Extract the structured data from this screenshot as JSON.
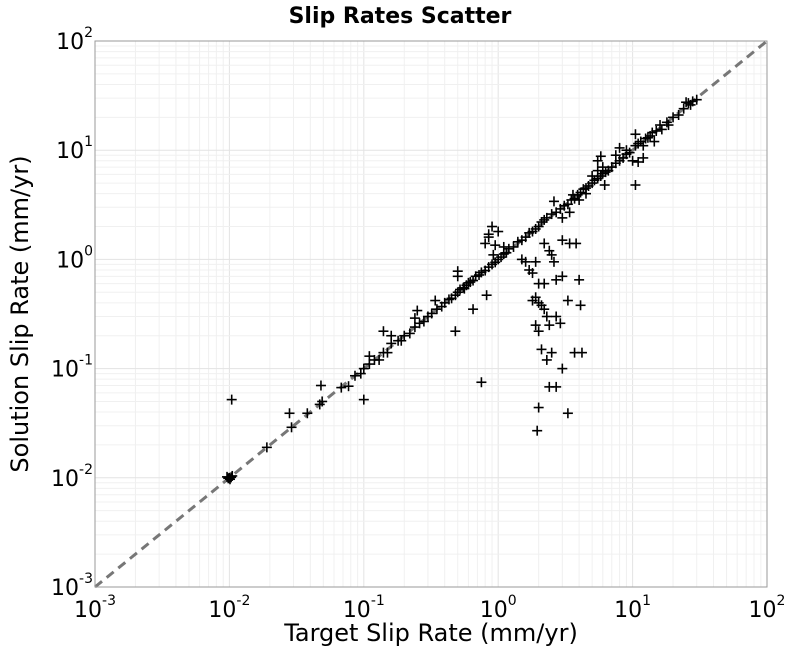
{
  "chart_data": {
    "type": "scatter",
    "title": "Slip Rates Scatter",
    "xlabel": "Target Slip Rate (mm/yr)",
    "ylabel": "Solution Slip Rate (mm/yr)",
    "xscale": "log",
    "yscale": "log",
    "xlim": [
      0.001,
      100
    ],
    "ylim": [
      0.001,
      100
    ],
    "x_ticks": [
      {
        "base": "10",
        "exp": "-3"
      },
      {
        "base": "10",
        "exp": "-2"
      },
      {
        "base": "10",
        "exp": "-1"
      },
      {
        "base": "10",
        "exp": "0"
      },
      {
        "base": "10",
        "exp": "1"
      },
      {
        "base": "10",
        "exp": "2"
      }
    ],
    "y_ticks": [
      {
        "base": "10",
        "exp": "-3"
      },
      {
        "base": "10",
        "exp": "-2"
      },
      {
        "base": "10",
        "exp": "-1"
      },
      {
        "base": "10",
        "exp": "0"
      },
      {
        "base": "10",
        "exp": "1"
      },
      {
        "base": "10",
        "exp": "2"
      }
    ],
    "grid": true,
    "reference_line": {
      "style": "dashed",
      "color": "#777777",
      "from": [
        0.001,
        0.001
      ],
      "to": [
        100,
        100
      ]
    },
    "marker": {
      "shape": "plus",
      "color": "#000000"
    },
    "points": [
      [
        0.01,
        0.01
      ],
      [
        0.0103,
        0.0101
      ],
      [
        0.0098,
        0.0099
      ],
      [
        0.0105,
        0.0104
      ],
      [
        0.0101,
        0.0097
      ],
      [
        0.0096,
        0.0102
      ],
      [
        0.0104,
        0.052
      ],
      [
        0.019,
        0.019
      ],
      [
        0.029,
        0.029
      ],
      [
        0.028,
        0.039
      ],
      [
        0.038,
        0.039
      ],
      [
        0.047,
        0.047
      ],
      [
        0.049,
        0.05
      ],
      [
        0.048,
        0.07
      ],
      [
        0.068,
        0.067
      ],
      [
        0.077,
        0.069
      ],
      [
        0.086,
        0.086
      ],
      [
        0.1,
        0.1
      ],
      [
        0.095,
        0.09
      ],
      [
        0.1,
        0.052
      ],
      [
        0.11,
        0.11
      ],
      [
        0.12,
        0.12
      ],
      [
        0.11,
        0.13
      ],
      [
        0.13,
        0.12
      ],
      [
        0.14,
        0.14
      ],
      [
        0.15,
        0.14
      ],
      [
        0.16,
        0.17
      ],
      [
        0.18,
        0.18
      ],
      [
        0.19,
        0.18
      ],
      [
        0.2,
        0.2
      ],
      [
        0.14,
        0.22
      ],
      [
        0.16,
        0.2
      ],
      [
        0.22,
        0.21
      ],
      [
        0.24,
        0.24
      ],
      [
        0.26,
        0.26
      ],
      [
        0.28,
        0.27
      ],
      [
        0.3,
        0.3
      ],
      [
        0.24,
        0.29
      ],
      [
        0.25,
        0.34
      ],
      [
        0.32,
        0.32
      ],
      [
        0.35,
        0.35
      ],
      [
        0.38,
        0.37
      ],
      [
        0.34,
        0.42
      ],
      [
        0.4,
        0.4
      ],
      [
        0.43,
        0.43
      ],
      [
        0.45,
        0.44
      ],
      [
        0.48,
        0.47
      ],
      [
        0.5,
        0.5
      ],
      [
        0.52,
        0.53
      ],
      [
        0.55,
        0.55
      ],
      [
        0.48,
        0.22
      ],
      [
        0.58,
        0.58
      ],
      [
        0.6,
        0.61
      ],
      [
        0.62,
        0.62
      ],
      [
        0.65,
        0.64
      ],
      [
        0.68,
        0.7
      ],
      [
        0.72,
        0.72
      ],
      [
        0.75,
        0.76
      ],
      [
        0.8,
        0.79
      ],
      [
        0.85,
        0.85
      ],
      [
        0.9,
        0.9
      ],
      [
        0.95,
        0.94
      ],
      [
        1.0,
        1.0
      ],
      [
        0.5,
        0.78
      ],
      [
        0.5,
        0.7
      ],
      [
        0.56,
        0.54
      ],
      [
        0.65,
        0.35
      ],
      [
        0.75,
        0.075
      ],
      [
        0.82,
        0.47
      ],
      [
        1.05,
        1.05
      ],
      [
        1.1,
        1.12
      ],
      [
        1.15,
        1.15
      ],
      [
        1.2,
        1.25
      ],
      [
        0.92,
        1.1
      ],
      [
        0.95,
        1.35
      ],
      [
        0.8,
        1.4
      ],
      [
        0.85,
        1.6
      ],
      [
        1.0,
        1.8
      ],
      [
        0.9,
        2.0
      ],
      [
        0.85,
        1.7
      ],
      [
        1.1,
        1.3
      ],
      [
        1.3,
        1.3
      ],
      [
        1.4,
        1.45
      ],
      [
        1.5,
        1.5
      ],
      [
        1.6,
        1.6
      ],
      [
        1.7,
        1.75
      ],
      [
        1.8,
        1.8
      ],
      [
        1.9,
        1.9
      ],
      [
        2.0,
        2.0
      ],
      [
        2.1,
        2.2
      ],
      [
        2.2,
        2.3
      ],
      [
        2.3,
        2.4
      ],
      [
        2.5,
        2.6
      ],
      [
        1.5,
        1.0
      ],
      [
        1.6,
        0.95
      ],
      [
        1.7,
        0.8
      ],
      [
        1.8,
        0.75
      ],
      [
        1.9,
        0.95
      ],
      [
        2.0,
        0.6
      ],
      [
        1.9,
        0.45
      ],
      [
        2.0,
        0.4
      ],
      [
        2.1,
        0.38
      ],
      [
        1.9,
        0.25
      ],
      [
        2.0,
        0.22
      ],
      [
        2.1,
        0.15
      ],
      [
        2.2,
        0.35
      ],
      [
        2.3,
        0.3
      ],
      [
        2.4,
        0.25
      ],
      [
        1.8,
        0.42
      ],
      [
        2.5,
        0.14
      ],
      [
        2.3,
        0.12
      ],
      [
        2.0,
        0.044
      ],
      [
        1.95,
        0.027
      ],
      [
        2.4,
        0.068
      ],
      [
        2.7,
        0.068
      ],
      [
        3.3,
        0.039
      ],
      [
        2.2,
        1.4
      ],
      [
        2.4,
        1.2
      ],
      [
        2.5,
        1.1
      ],
      [
        2.6,
        0.95
      ],
      [
        2.2,
        0.6
      ],
      [
        2.7,
        0.65
      ],
      [
        3.0,
        1.5
      ],
      [
        3.4,
        1.4
      ],
      [
        3.8,
        1.4
      ],
      [
        4.0,
        0.65
      ],
      [
        3.0,
        0.7
      ],
      [
        2.9,
        0.26
      ],
      [
        3.3,
        0.42
      ],
      [
        2.7,
        0.3
      ],
      [
        4.1,
        0.38
      ],
      [
        4.2,
        0.14
      ],
      [
        3.0,
        0.1
      ],
      [
        3.7,
        0.14
      ],
      [
        2.7,
        2.7
      ],
      [
        2.9,
        2.9
      ],
      [
        3.1,
        3.1
      ],
      [
        3.3,
        3.2
      ],
      [
        3.5,
        3.5
      ],
      [
        3.7,
        3.6
      ],
      [
        3.9,
        3.9
      ],
      [
        4.1,
        4.1
      ],
      [
        4.3,
        4.4
      ],
      [
        4.5,
        4.5
      ],
      [
        4.7,
        4.7
      ],
      [
        5.0,
        5.0
      ],
      [
        5.2,
        5.3
      ],
      [
        5.5,
        5.5
      ],
      [
        5.8,
        5.8
      ],
      [
        6.0,
        6.1
      ],
      [
        6.3,
        6.3
      ],
      [
        6.6,
        6.5
      ],
      [
        3.0,
        2.4
      ],
      [
        3.4,
        2.7
      ],
      [
        3.6,
        3.9
      ],
      [
        2.6,
        3.4
      ],
      [
        4.0,
        3.5
      ],
      [
        4.5,
        4.0
      ],
      [
        5.0,
        5.8
      ],
      [
        5.5,
        6.5
      ],
      [
        6.0,
        7.0
      ],
      [
        5.5,
        8.0
      ],
      [
        5.8,
        8.8
      ],
      [
        6.2,
        4.8
      ],
      [
        7.0,
        7.0
      ],
      [
        7.5,
        7.6
      ],
      [
        8.0,
        8.0
      ],
      [
        8.5,
        8.5
      ],
      [
        9.0,
        9.2
      ],
      [
        9.5,
        9.5
      ],
      [
        8.0,
        10.5
      ],
      [
        9.0,
        10.0
      ],
      [
        7.5,
        9.0
      ],
      [
        10.5,
        11.0
      ],
      [
        11.0,
        11.5
      ],
      [
        10.0,
        8.0
      ],
      [
        10.5,
        4.8
      ],
      [
        10.5,
        14.0
      ],
      [
        11.5,
        12.0
      ],
      [
        12.0,
        11.0
      ],
      [
        12.5,
        12.8
      ],
      [
        13.0,
        13.0
      ],
      [
        13.5,
        13.5
      ],
      [
        14.0,
        14.5
      ],
      [
        15.0,
        15.0
      ],
      [
        14.5,
        12.0
      ],
      [
        12.0,
        8.5
      ],
      [
        11.0,
        7.8
      ],
      [
        16.0,
        17.0
      ],
      [
        18.0,
        18.0
      ],
      [
        20.0,
        20.0
      ],
      [
        22.0,
        21.0
      ],
      [
        24.0,
        24.0
      ],
      [
        26.0,
        27.0
      ],
      [
        27.0,
        26.0
      ],
      [
        28.0,
        28.0
      ],
      [
        30.0,
        29.0
      ],
      [
        25.0,
        27.5
      ],
      [
        18.5,
        17.0
      ],
      [
        16.5,
        15.5
      ]
    ]
  }
}
